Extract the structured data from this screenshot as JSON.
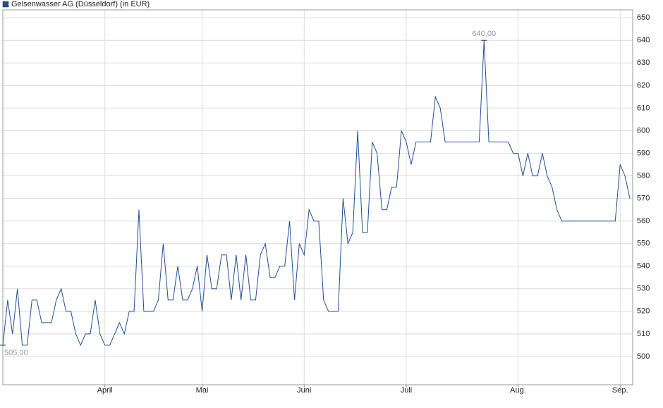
{
  "chart_data": {
    "type": "line",
    "categories": [
      null,
      null,
      null,
      null,
      null,
      null,
      null,
      null,
      null,
      null,
      null,
      null,
      null,
      null,
      null,
      null,
      null,
      null,
      null,
      null,
      null,
      "April",
      null,
      null,
      null,
      null,
      null,
      null,
      null,
      null,
      null,
      null,
      null,
      null,
      null,
      null,
      null,
      null,
      null,
      null,
      null,
      "Mai",
      null,
      null,
      null,
      null,
      null,
      null,
      null,
      null,
      null,
      null,
      null,
      null,
      null,
      null,
      null,
      null,
      null,
      null,
      null,
      null,
      "Juni",
      null,
      null,
      null,
      null,
      null,
      null,
      null,
      null,
      null,
      null,
      null,
      null,
      null,
      null,
      null,
      null,
      null,
      null,
      null,
      null,
      "Juli",
      null,
      null,
      null,
      null,
      null,
      null,
      null,
      null,
      null,
      null,
      null,
      null,
      null,
      null,
      null,
      null,
      null,
      null,
      null,
      null,
      null,
      null,
      "Aug.",
      null,
      null,
      null,
      null,
      null,
      null,
      null,
      null,
      null,
      null,
      null,
      null,
      null,
      null,
      null,
      null,
      null,
      null,
      null,
      null,
      "Sep.",
      null,
      null
    ],
    "series": [
      {
        "name": "Gelsenwasser AG (Düsseldorf) (in EUR)",
        "color": "#1f4e96",
        "values": [
          505,
          525,
          510,
          530,
          505,
          505,
          525,
          525,
          515,
          515,
          515,
          525,
          530,
          520,
          520,
          510,
          505,
          510,
          510,
          525,
          510,
          505,
          505,
          510,
          515,
          510,
          520,
          520,
          565,
          520,
          520,
          520,
          525,
          550,
          525,
          525,
          540,
          525,
          525,
          530,
          540,
          520,
          545,
          530,
          530,
          545,
          545,
          525,
          545,
          525,
          545,
          525,
          525,
          545,
          550,
          535,
          535,
          540,
          540,
          560,
          525,
          550,
          545,
          565,
          560,
          560,
          525,
          520,
          520,
          520,
          570,
          550,
          555,
          600,
          555,
          555,
          595,
          590,
          565,
          565,
          575,
          575,
          600,
          595,
          585,
          595,
          595,
          595,
          595,
          615,
          610,
          595,
          595,
          595,
          595,
          595,
          595,
          595,
          595,
          640,
          595,
          595,
          595,
          595,
          595,
          590,
          590,
          580,
          590,
          580,
          580,
          590,
          580,
          575,
          565,
          560,
          560,
          560,
          560,
          560,
          560,
          560,
          560,
          560,
          560,
          560,
          560,
          585,
          580,
          570
        ],
        "value_labels": [
          "505,00",
          null,
          null,
          null,
          null,
          null,
          null,
          null,
          null,
          null,
          null,
          null,
          null,
          null,
          null,
          null,
          null,
          null,
          null,
          null,
          null,
          null,
          null,
          null,
          null,
          null,
          null,
          null,
          null,
          null,
          null,
          null,
          null,
          null,
          null,
          null,
          null,
          null,
          null,
          null,
          null,
          null,
          null,
          null,
          null,
          null,
          null,
          null,
          null,
          null,
          null,
          null,
          null,
          null,
          null,
          null,
          null,
          null,
          null,
          null,
          null,
          null,
          null,
          null,
          null,
          null,
          null,
          null,
          null,
          null,
          null,
          null,
          null,
          null,
          null,
          null,
          null,
          null,
          null,
          null,
          null,
          null,
          null,
          null,
          null,
          null,
          null,
          null,
          null,
          null,
          null,
          null,
          null,
          null,
          null,
          null,
          null,
          null,
          null,
          "640,00",
          null,
          null,
          null,
          null,
          null,
          null,
          null,
          null,
          null,
          null,
          null,
          null,
          null,
          null,
          null,
          null,
          null,
          null,
          null,
          null,
          null,
          null,
          null,
          null,
          null,
          null,
          null,
          null,
          null,
          null
        ]
      }
    ],
    "ylim": [
      487.5,
      653.5
    ],
    "yticks": [
      500,
      510,
      520,
      530,
      540,
      550,
      560,
      570,
      580,
      590,
      600,
      610,
      620,
      630,
      640,
      650
    ],
    "grid": true
  }
}
